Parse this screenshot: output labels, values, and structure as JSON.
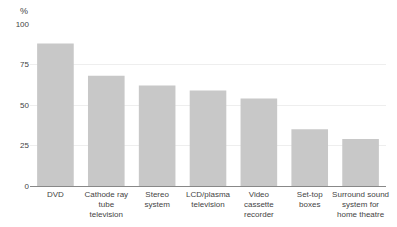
{
  "chart_data": {
    "type": "bar",
    "categories": [
      "DVD",
      "Cathode ray\ntube\ntelevision",
      "Stereo\nsystem",
      "LCD/plasma\ntelevision",
      "Video\ncassette\nrecorder",
      "Set-top\nboxes",
      "Surround sound\nsystem for\nhome theatre"
    ],
    "values": [
      88,
      68,
      62,
      59,
      54,
      35,
      29
    ],
    "color": "#c8c8c8",
    "ylabel": "%",
    "ylim": [
      0,
      100
    ],
    "yticks": [
      0,
      25,
      50,
      75,
      100
    ],
    "grid": true
  }
}
